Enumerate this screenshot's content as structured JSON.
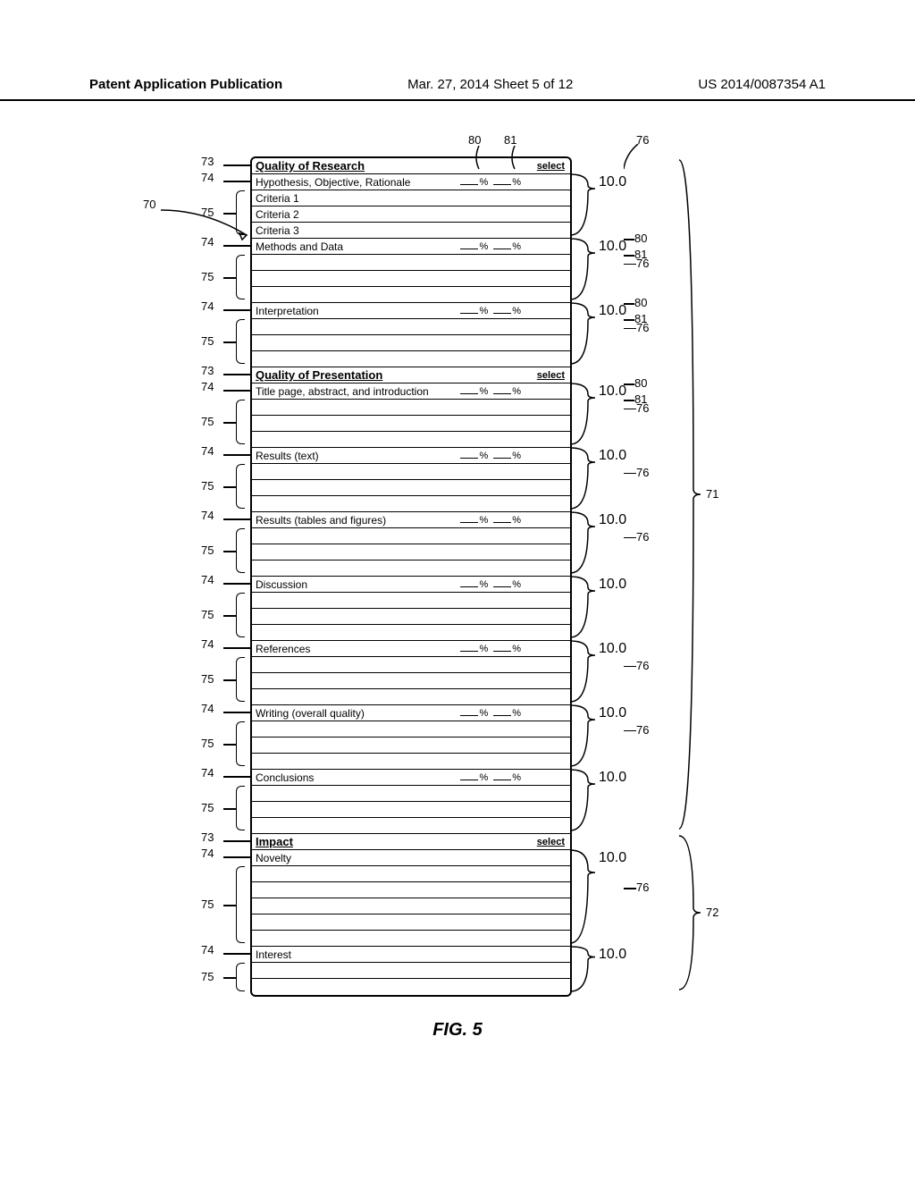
{
  "header": {
    "left": "Patent Application Publication",
    "mid": "Mar. 27, 2014  Sheet 5 of 12",
    "right": "US 2014/0087354 A1"
  },
  "caption": "FIG. 5",
  "refs": {
    "r70": "70",
    "r71": "71",
    "r72": "72",
    "r73": "73",
    "r74": "74",
    "r75": "75",
    "r76": "76",
    "r80": "80",
    "r81": "81"
  },
  "groups": [
    {
      "title": "Quality of Research",
      "select": "select",
      "items": [
        {
          "label": "Hypothesis, Objective, Rationale",
          "pct": true,
          "score": "10.0",
          "criteria": [
            "Criteria 1",
            "Criteria 2",
            "Criteria 3"
          ]
        },
        {
          "label": "Methods and Data",
          "pct": true,
          "score": "10.0",
          "criteria": [
            "",
            "",
            ""
          ]
        },
        {
          "label": "Interpretation",
          "pct": true,
          "score": "10.0",
          "criteria": [
            "",
            "",
            ""
          ]
        }
      ]
    },
    {
      "title": "Quality of Presentation",
      "select": "select",
      "items": [
        {
          "label": "Title page, abstract, and introduction",
          "pct": true,
          "score": "10.0",
          "criteria": [
            "",
            "",
            ""
          ]
        },
        {
          "label": "Results (text)",
          "pct": true,
          "score": "10.0",
          "criteria": [
            "",
            "",
            ""
          ]
        },
        {
          "label": "Results  (tables and figures)",
          "pct": true,
          "score": "10.0",
          "criteria": [
            "",
            "",
            ""
          ]
        },
        {
          "label": "Discussion",
          "pct": true,
          "score": "10.0",
          "criteria": [
            "",
            "",
            ""
          ]
        },
        {
          "label": "References",
          "pct": true,
          "score": "10.0",
          "criteria": [
            "",
            "",
            ""
          ]
        },
        {
          "label": "Writing (overall quality)",
          "pct": true,
          "score": "10.0",
          "criteria": [
            "",
            "",
            ""
          ]
        },
        {
          "label": "Conclusions",
          "pct": true,
          "score": "10.0",
          "criteria": [
            "",
            "",
            ""
          ]
        }
      ]
    },
    {
      "title": "Impact",
      "select": "select",
      "items": [
        {
          "label": "Novelty",
          "pct": false,
          "score": "10.0",
          "criteria": [
            "",
            "",
            "",
            "",
            ""
          ]
        },
        {
          "label": "Interest",
          "pct": false,
          "score": "10.0",
          "criteria": [
            "",
            ""
          ]
        }
      ]
    }
  ]
}
